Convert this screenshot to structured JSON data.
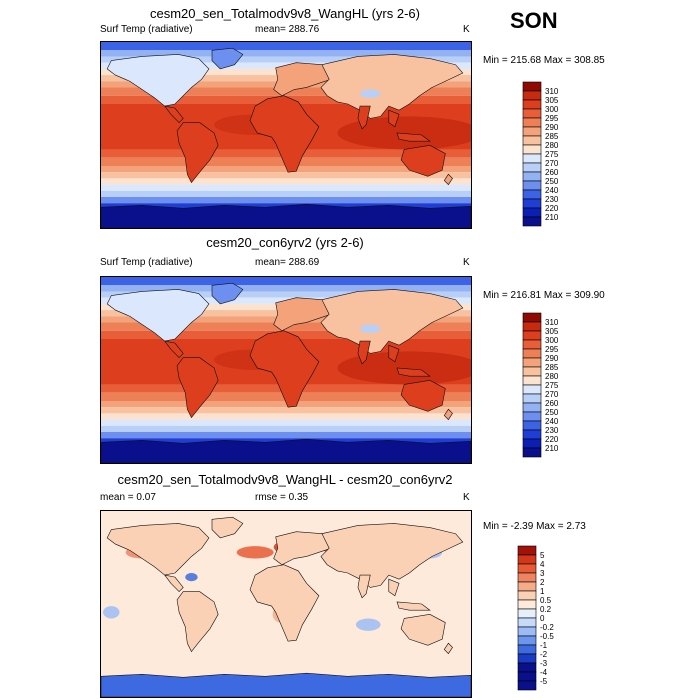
{
  "season": "SON",
  "colors": {
    "abs_scale": [
      "#0a0f8c",
      "#0b1fb4",
      "#1f3ed6",
      "#3c62e6",
      "#6d8ff0",
      "#93b2f4",
      "#b8cff8",
      "#dbe7fc",
      "#fbe3cf",
      "#f8c2a0",
      "#f3a27a",
      "#ee8057",
      "#e85e38",
      "#dd3f1e",
      "#c72a0f",
      "#8f0a03"
    ],
    "diff_scale": [
      "#0a0f8c",
      "#1a3bc4",
      "#3d6ae0",
      "#6c96ee",
      "#9bbcf5",
      "#c6daf9",
      "#e6effc",
      "#fdeadb",
      "#fbd1b5",
      "#f6ac88",
      "#ef8560",
      "#e85a35",
      "#d43717",
      "#a0120a"
    ],
    "coast": "#111111"
  },
  "panels": [
    {
      "title": "cesm20_sen_Totalmodv9v8_WangHL (yrs 2-6)",
      "left_label": "Surf Temp (radiative)",
      "mid_label": "mean= 288.76",
      "unit": "K",
      "minmax": "Min = 215.68 Max = 308.85",
      "colorbar_labels": [
        "310",
        "305",
        "300",
        "295",
        "290",
        "285",
        "280",
        "275",
        "270",
        "260",
        "250",
        "240",
        "230",
        "220",
        "210"
      ],
      "field": "abs"
    },
    {
      "title": "cesm20_con6yrv2 (yrs 2-6)",
      "left_label": "Surf Temp (radiative)",
      "mid_label": "mean= 288.69",
      "unit": "K",
      "minmax": "Min = 216.81 Max = 309.90",
      "colorbar_labels": [
        "310",
        "305",
        "300",
        "295",
        "290",
        "285",
        "280",
        "275",
        "270",
        "260",
        "250",
        "240",
        "230",
        "220",
        "210"
      ],
      "field": "abs"
    },
    {
      "title": "cesm20_sen_Totalmodv9v8_WangHL - cesm20_con6yrv2",
      "left_label": "mean =   0.07",
      "mid_label": "rmse =   0.35",
      "unit": "K",
      "minmax": "Min =  -2.39 Max =   2.73",
      "colorbar_labels": [
        "5",
        "4",
        "3",
        "2",
        "1",
        "0.5",
        "0.2",
        "0",
        "-0.2",
        "-0.5",
        "-1",
        "-2",
        "-3",
        "-4",
        "-5"
      ],
      "field": "diff"
    }
  ]
}
